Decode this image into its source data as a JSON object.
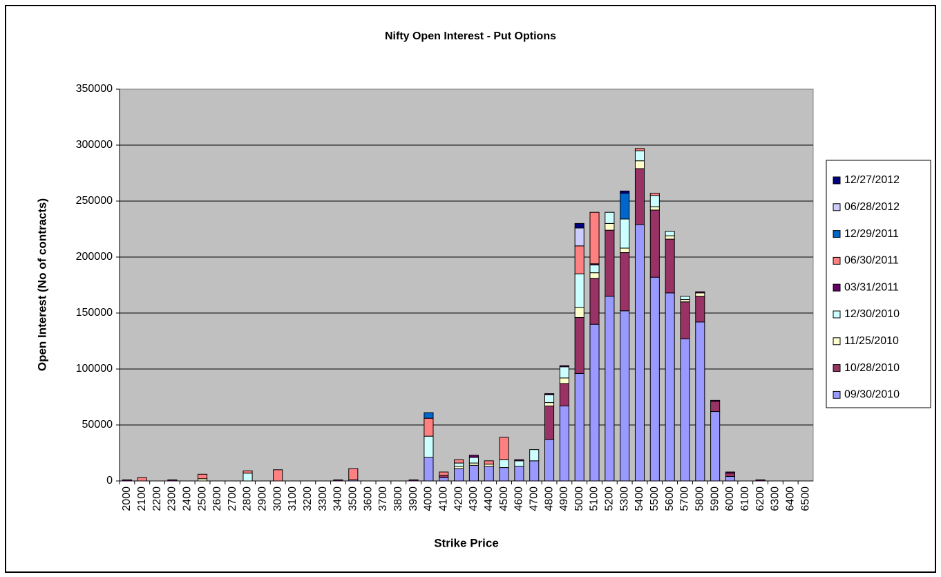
{
  "chart_data": {
    "type": "stacked_bar",
    "title": "Nifty Open Interest - Put Options",
    "x_label": "Strike Price",
    "y_label": "Open Interest (No of contracts)",
    "categories": [
      "2000",
      "2100",
      "2200",
      "2300",
      "2400",
      "2500",
      "2600",
      "2700",
      "2800",
      "2900",
      "3000",
      "3100",
      "3200",
      "3300",
      "3400",
      "3500",
      "3600",
      "3700",
      "3800",
      "3900",
      "4000",
      "4100",
      "4200",
      "4300",
      "4400",
      "4500",
      "4600",
      "4700",
      "4800",
      "4900",
      "5000",
      "5100",
      "5200",
      "5300",
      "5400",
      "5500",
      "5600",
      "5700",
      "5800",
      "5900",
      "6000",
      "6100",
      "6200",
      "6300",
      "6400",
      "6500"
    ],
    "ylim": [
      0,
      350000
    ],
    "yticks": [
      0,
      50000,
      100000,
      150000,
      200000,
      250000,
      300000,
      350000
    ],
    "grid": true,
    "legend": "right",
    "series": [
      {
        "name": "09/30/2010",
        "color": "#9999ff",
        "values": [
          0,
          0,
          0,
          0,
          0,
          0,
          0,
          0,
          0,
          0,
          0,
          0,
          0,
          0,
          0,
          1000,
          0,
          0,
          0,
          0,
          21000,
          3000,
          11000,
          14000,
          13000,
          12000,
          13000,
          18000,
          37000,
          67000,
          96000,
          140000,
          165000,
          152000,
          229000,
          182000,
          168000,
          127000,
          142000,
          62000,
          4000,
          0,
          0,
          0,
          0,
          0
        ]
      },
      {
        "name": "10/28/2010",
        "color": "#993366",
        "values": [
          0,
          0,
          0,
          0,
          0,
          0,
          0,
          0,
          0,
          0,
          0,
          0,
          0,
          0,
          0,
          0,
          0,
          0,
          0,
          0,
          0,
          2000,
          0,
          0,
          0,
          0,
          0,
          0,
          30000,
          20000,
          50000,
          41000,
          59000,
          52000,
          50000,
          60000,
          48000,
          33000,
          23000,
          9000,
          3000,
          0,
          0,
          0,
          0,
          0
        ]
      },
      {
        "name": "11/25/2010",
        "color": "#ffffcc",
        "values": [
          0,
          0,
          0,
          0,
          0,
          2000,
          0,
          0,
          0,
          0,
          0,
          0,
          0,
          0,
          0,
          0,
          0,
          0,
          0,
          0,
          0,
          0,
          2000,
          2000,
          2000,
          0,
          0,
          0,
          3000,
          5000,
          9000,
          5000,
          6000,
          4000,
          7000,
          3000,
          3000,
          2000,
          3000,
          0,
          0,
          0,
          0,
          0,
          0,
          0
        ]
      },
      {
        "name": "12/30/2010",
        "color": "#ccffff",
        "values": [
          0,
          0,
          0,
          0,
          0,
          0,
          0,
          0,
          7000,
          0,
          0,
          0,
          0,
          0,
          0,
          0,
          0,
          0,
          0,
          0,
          19000,
          0,
          3000,
          5000,
          0,
          7000,
          5000,
          10000,
          7000,
          10000,
          30000,
          7000,
          10000,
          26000,
          9000,
          10000,
          4000,
          3000,
          0,
          0,
          0,
          0,
          0,
          0,
          0,
          0
        ]
      },
      {
        "name": "03/31/2011",
        "color": "#660066",
        "values": [
          1000,
          0,
          0,
          1000,
          0,
          0,
          0,
          0,
          0,
          0,
          0,
          0,
          0,
          0,
          1000,
          0,
          0,
          0,
          0,
          1000,
          0,
          0,
          0,
          2000,
          0,
          0,
          1000,
          0,
          1000,
          1000,
          0,
          1000,
          0,
          0,
          0,
          0,
          0,
          0,
          1000,
          1000,
          1000,
          0,
          1000,
          0,
          0,
          0
        ]
      },
      {
        "name": "06/30/2011",
        "color": "#ff8080",
        "values": [
          0,
          3000,
          0,
          0,
          0,
          4000,
          0,
          0,
          2000,
          0,
          10000,
          0,
          0,
          0,
          0,
          10000,
          0,
          0,
          0,
          0,
          16000,
          3000,
          3000,
          0,
          3000,
          20000,
          0,
          0,
          0,
          0,
          25000,
          46000,
          0,
          0,
          2000,
          2000,
          0,
          0,
          0,
          0,
          0,
          0,
          0,
          0,
          0,
          0
        ]
      },
      {
        "name": "12/29/2011",
        "color": "#0066cc",
        "values": [
          0,
          0,
          0,
          0,
          0,
          0,
          0,
          0,
          0,
          0,
          0,
          0,
          0,
          0,
          0,
          0,
          0,
          0,
          0,
          0,
          5000,
          0,
          0,
          0,
          0,
          0,
          0,
          0,
          0,
          0,
          0,
          0,
          0,
          23000,
          0,
          0,
          0,
          0,
          0,
          0,
          0,
          0,
          0,
          0,
          0,
          0
        ]
      },
      {
        "name": "06/28/2012",
        "color": "#ccccff",
        "values": [
          0,
          0,
          0,
          0,
          0,
          0,
          0,
          0,
          0,
          0,
          0,
          0,
          0,
          0,
          0,
          0,
          0,
          0,
          0,
          0,
          0,
          0,
          0,
          0,
          0,
          0,
          0,
          0,
          0,
          0,
          16000,
          0,
          0,
          0,
          0,
          0,
          0,
          0,
          0,
          0,
          0,
          0,
          0,
          0,
          0,
          0
        ]
      },
      {
        "name": "12/27/2012",
        "color": "#000080",
        "values": [
          0,
          0,
          0,
          0,
          0,
          0,
          0,
          0,
          0,
          0,
          0,
          0,
          0,
          0,
          0,
          0,
          0,
          0,
          0,
          0,
          0,
          0,
          0,
          0,
          0,
          0,
          0,
          0,
          0,
          0,
          4000,
          0,
          0,
          2000,
          0,
          0,
          0,
          0,
          0,
          0,
          0,
          0,
          0,
          0,
          0,
          0
        ]
      }
    ]
  }
}
